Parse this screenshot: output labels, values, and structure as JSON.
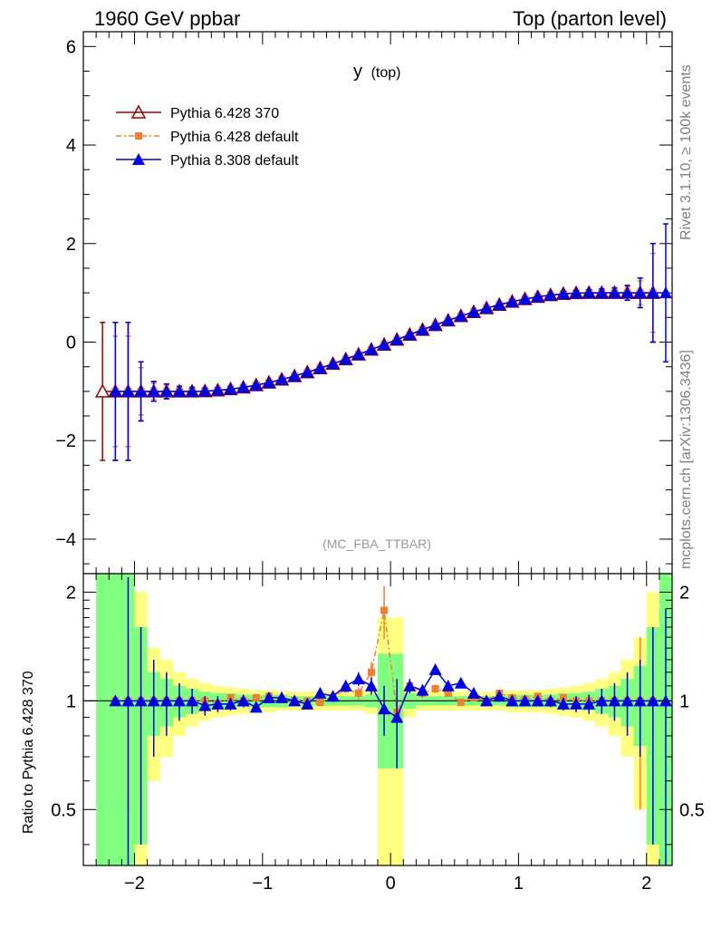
{
  "header": {
    "left": "1960 GeV ppbar",
    "right": "Top (parton level)"
  },
  "chart_data": {
    "type": "line",
    "title_main": "y",
    "title_sub": "(top)",
    "analysis_label": "(MC_FBA_TTBAR)",
    "side_text_top": "Rivet 3.1.10, ≥ 100k events",
    "side_text_bottom": "mcplots.cern.ch [arXiv:1306.3436]",
    "ratio_ylabel": "Ratio to Pythia 6.428 370",
    "xlim": [
      -2.4,
      2.2
    ],
    "ylim_main": [
      -4.7,
      6.3
    ],
    "ratio_ylim": [
      0.35,
      2.25
    ],
    "main_yticks": [
      -4,
      -2,
      0,
      2,
      4,
      6
    ],
    "main_ytick_labels": [
      "−4",
      "−2",
      "0",
      "2",
      "4",
      "6"
    ],
    "ratio_yticks": [
      0.5,
      1,
      2
    ],
    "ratio_ytick_labels": [
      "0.5",
      "1",
      "2"
    ],
    "xticks": [
      -2,
      -1,
      0,
      1,
      2
    ],
    "xtick_labels": [
      "−2",
      "−1",
      "0",
      "1",
      "2"
    ],
    "colors": {
      "ref": "#9a0000",
      "p6def": "#f08030",
      "p8": "#0000e0",
      "band_green": "#80ff80",
      "band_yellow": "#ffff80"
    },
    "legend": [
      "Pythia 6.428 370",
      "Pythia 6.428 default",
      "Pythia 8.308 default"
    ],
    "legend_position": "top-left",
    "series": [
      {
        "name": "Pythia 6.428 370",
        "marker": "open-triangle",
        "x": [
          -2.25
        ],
        "y": [
          -1.0
        ],
        "yerr": [
          1.4
        ]
      },
      {
        "name": "Pythia 6.428 default",
        "marker": "square",
        "x": [
          -1.95
        ],
        "y": [
          -1.0
        ],
        "yerr": [
          0.7
        ]
      },
      {
        "name": "Pythia 8.308 default",
        "marker": "filled-triangle",
        "x": [
          2.1
        ],
        "y": [
          1.0
        ],
        "yerr": [
          1.4
        ]
      }
    ],
    "x_centers": [
      -2.25,
      -2.15,
      -2.05,
      -1.95,
      -1.85,
      -1.75,
      -1.65,
      -1.55,
      -1.45,
      -1.35,
      -1.25,
      -1.15,
      -1.05,
      -0.95,
      -0.85,
      -0.75,
      -0.65,
      -0.55,
      -0.45,
      -0.35,
      -0.25,
      -0.15,
      -0.05,
      0.05,
      0.15,
      0.25,
      0.35,
      0.45,
      0.55,
      0.65,
      0.75,
      0.85,
      0.95,
      1.05,
      1.15,
      1.25,
      1.35,
      1.45,
      1.55,
      1.65,
      1.75,
      1.85,
      1.95,
      2.05,
      2.15
    ],
    "ref_errors": [
      1.4,
      1.4,
      1.4,
      0.6,
      0.2,
      0.15,
      0.1,
      0.08,
      0.06,
      0.05,
      0.05,
      0.04,
      0.04,
      0.04,
      0.04,
      0.03,
      0.03,
      0.03,
      0.03,
      0.03,
      0.03,
      0.03,
      0.03,
      0.03,
      0.03,
      0.03,
      0.03,
      0.03,
      0.03,
      0.03,
      0.03,
      0.03,
      0.04,
      0.04,
      0.04,
      0.04,
      0.05,
      0.05,
      0.06,
      0.08,
      0.1,
      0.15,
      0.3,
      1.0,
      1.4
    ],
    "ratio_p6def": [
      null,
      1.0,
      1.0,
      1.0,
      1.0,
      1.0,
      1.0,
      1.0,
      1.0,
      0.98,
      1.02,
      1.0,
      1.02,
      1.03,
      1.01,
      1.0,
      1.0,
      0.99,
      1.02,
      1.08,
      1.05,
      1.2,
      1.78,
      0.93,
      1.1,
      1.05,
      1.08,
      1.05,
      0.99,
      1.02,
      1.0,
      1.05,
      1.02,
      1.01,
      1.03,
      1.0,
      1.02,
      1.0,
      1.0,
      1.0,
      1.0,
      1.0,
      1.0,
      1.0,
      null
    ],
    "ratio_p6def_err": [
      0,
      0,
      0.5,
      0.6,
      0.1,
      0.05,
      0.04,
      0.03,
      0.03,
      0.03,
      0.02,
      0.02,
      0.02,
      0.02,
      0.02,
      0.02,
      0.02,
      0.02,
      0.03,
      0.03,
      0.04,
      0.08,
      0.3,
      0.1,
      0.05,
      0.03,
      0.03,
      0.02,
      0.02,
      0.02,
      0.02,
      0.02,
      0.02,
      0.02,
      0.02,
      0.02,
      0.02,
      0.02,
      0.02,
      0.03,
      0.04,
      0.05,
      0.5,
      0.6,
      0
    ],
    "ratio_p8": [
      null,
      1.0,
      1.0,
      1.0,
      1.0,
      1.0,
      1.0,
      1.0,
      0.97,
      0.98,
      0.98,
      1.0,
      0.96,
      1.02,
      1.02,
      1.0,
      0.98,
      1.05,
      1.03,
      1.1,
      1.15,
      1.1,
      0.95,
      0.9,
      1.1,
      1.07,
      1.22,
      1.1,
      1.12,
      1.05,
      1.0,
      1.03,
      1.0,
      1.0,
      1.0,
      1.0,
      0.98,
      0.98,
      0.98,
      1.0,
      1.0,
      1.0,
      1.0,
      1.0,
      1.0
    ],
    "ratio_p8_err": [
      0,
      0,
      1.2,
      0.6,
      0.3,
      0.2,
      0.12,
      0.08,
      0.06,
      0.05,
      0.04,
      0.04,
      0.03,
      0.03,
      0.03,
      0.03,
      0.03,
      0.03,
      0.03,
      0.04,
      0.05,
      0.06,
      0.15,
      0.25,
      0.05,
      0.04,
      0.04,
      0.03,
      0.03,
      0.03,
      0.03,
      0.03,
      0.03,
      0.03,
      0.03,
      0.04,
      0.04,
      0.05,
      0.06,
      0.08,
      0.12,
      0.2,
      0.3,
      0.6,
      0.8
    ],
    "band_green_half": [
      1.4,
      1.4,
      1.4,
      0.6,
      0.2,
      0.15,
      0.1,
      0.08,
      0.06,
      0.05,
      0.05,
      0.04,
      0.04,
      0.04,
      0.04,
      0.03,
      0.03,
      0.03,
      0.03,
      0.03,
      0.03,
      0.04,
      0.35,
      0.35,
      0.05,
      0.03,
      0.03,
      0.03,
      0.03,
      0.03,
      0.03,
      0.03,
      0.04,
      0.04,
      0.04,
      0.04,
      0.05,
      0.05,
      0.06,
      0.08,
      0.1,
      0.15,
      0.25,
      0.6,
      1.4
    ],
    "band_yellow_half": [
      2.5,
      2.5,
      2.5,
      1.0,
      0.4,
      0.3,
      0.2,
      0.15,
      0.12,
      0.1,
      0.09,
      0.08,
      0.07,
      0.07,
      0.06,
      0.06,
      0.06,
      0.06,
      0.06,
      0.06,
      0.06,
      0.08,
      0.7,
      0.7,
      0.1,
      0.06,
      0.06,
      0.06,
      0.06,
      0.06,
      0.06,
      0.06,
      0.07,
      0.07,
      0.07,
      0.08,
      0.09,
      0.1,
      0.12,
      0.15,
      0.2,
      0.3,
      0.5,
      1.0,
      2.5
    ]
  }
}
